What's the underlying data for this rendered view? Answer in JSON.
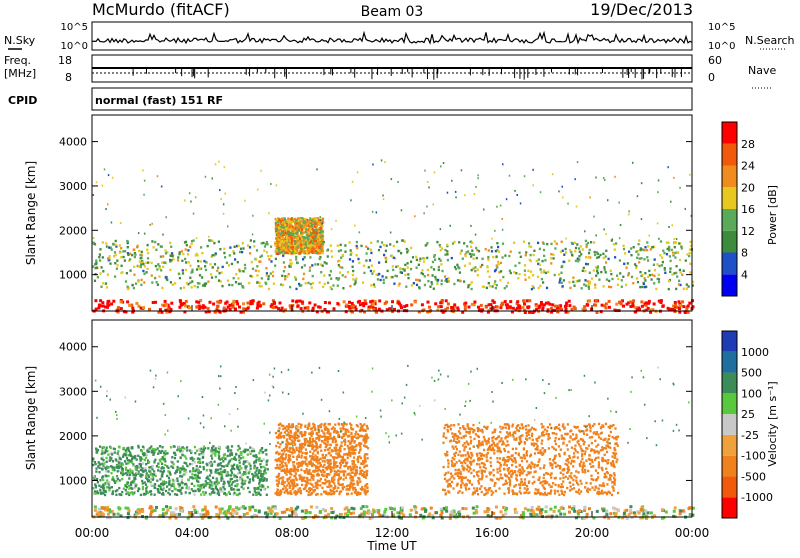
{
  "header": {
    "station_title": "McMurdo (fitACF)",
    "beam_title": "Beam 03",
    "date_title": "19/Dec/2013"
  },
  "top_panels": {
    "nsky_label": "N.Sky",
    "nsky_ticks": [
      "10^5",
      "10^0"
    ],
    "nsearch_label": "N.Search",
    "nsearch_ticks": [
      "10^5",
      "10^0"
    ],
    "freq_label_line1": "Freq.",
    "freq_label_line2": "[MHz]",
    "freq_ticks": [
      "18",
      "8"
    ],
    "nave_label": "Nave",
    "nave_ticks": [
      "60",
      "0"
    ],
    "cpid_label": "CPID",
    "cpid_text": "normal (fast) 151 RF"
  },
  "chart_data": [
    {
      "type": "heatmap",
      "panel": "power",
      "ylabel": "Slant Range [km]",
      "xlabel": "Time UT",
      "ylim": [
        180,
        4600
      ],
      "yticks": [
        1000,
        2000,
        3000,
        4000
      ],
      "xlim_hours": [
        0,
        24
      ],
      "xticks": [
        "00:00",
        "04:00",
        "08:00",
        "12:00",
        "16:00",
        "20:00",
        "00:00"
      ],
      "colorbar_label": "Power [dB]",
      "colorbar_ticks": [
        "28",
        "24",
        "20",
        "16",
        "12",
        "8",
        "4"
      ],
      "colorbar_colors": [
        "#0000f0",
        "#1e50c8",
        "#3c8c3c",
        "#5aaa5a",
        "#e6c81e",
        "#f08c1e",
        "#f05a0a",
        "#ff0000"
      ],
      "colorbar_range": [
        0,
        32
      ],
      "scatter_regions": [
        {
          "name": "main echo band",
          "t_start": 0.0,
          "t_end": 24.0,
          "range_min_km": 700,
          "range_max_km": 1800,
          "typical_value": 14
        },
        {
          "name": "enhanced patch",
          "t_start": 7.3,
          "t_end": 9.2,
          "range_min_km": 1500,
          "range_max_km": 2300,
          "typical_value": 20
        },
        {
          "name": "ground scatter",
          "t_start": 0.0,
          "t_end": 24.0,
          "range_min_km": 180,
          "range_max_km": 450,
          "typical_value": 30
        }
      ]
    },
    {
      "type": "heatmap",
      "panel": "velocity",
      "ylabel": "Slant Range [km]",
      "xlabel": "Time UT",
      "ylim": [
        180,
        4600
      ],
      "yticks": [
        1000,
        2000,
        3000,
        4000
      ],
      "xlim_hours": [
        0,
        24
      ],
      "xticks": [
        "00:00",
        "04:00",
        "08:00",
        "12:00",
        "16:00",
        "20:00",
        "00:00"
      ],
      "colorbar_label": "Velocity [m s⁻¹]",
      "colorbar_ticks": [
        "1000",
        "500",
        "100",
        "25",
        "-25",
        "-100",
        "-500",
        "-1000"
      ],
      "colorbar_colors": [
        "#ff0000",
        "#f05a0a",
        "#f0821e",
        "#f0a03c",
        "#c8c8c8",
        "#5ac83c",
        "#3c8c5a",
        "#1e6ea0",
        "#1e3cb4"
      ],
      "scatter_regions": [
        {
          "name": "positive velocity",
          "t_start": 0.0,
          "t_end": 7.0,
          "range_min_km": 700,
          "range_max_km": 1800,
          "typical_value": 150
        },
        {
          "name": "negative velocity",
          "t_start": 7.3,
          "t_end": 11.0,
          "range_min_km": 700,
          "range_max_km": 2300,
          "typical_value": -300
        },
        {
          "name": "negative velocity",
          "t_start": 14.0,
          "t_end": 21.0,
          "range_min_km": 700,
          "range_max_km": 2300,
          "typical_value": -300
        },
        {
          "name": "ground scatter",
          "t_start": 0.0,
          "t_end": 24.0,
          "range_min_km": 180,
          "range_max_km": 450,
          "typical_value": 0
        }
      ]
    }
  ]
}
